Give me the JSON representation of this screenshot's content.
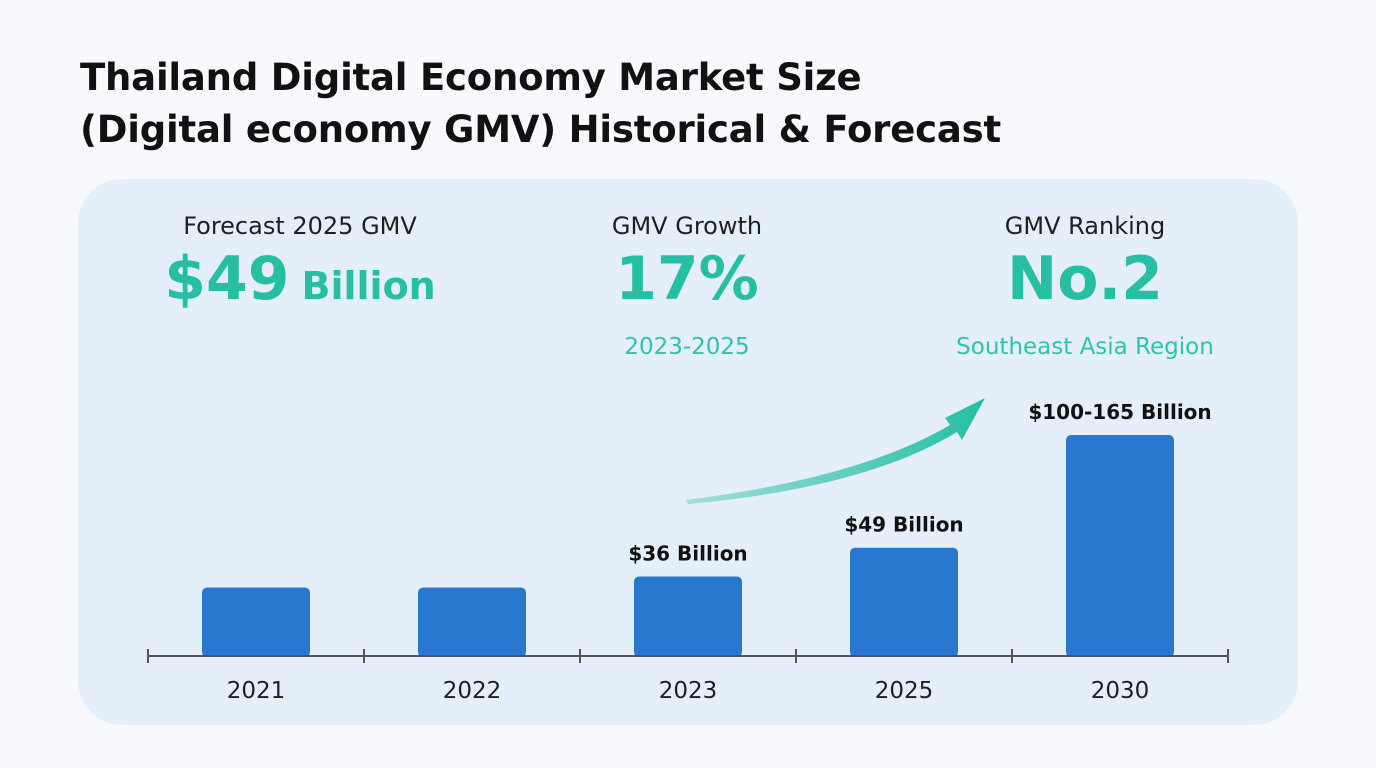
{
  "title_lines": [
    "Thailand Digital Economy Market Size",
    "(Digital economy GMV) Historical & Forecast"
  ],
  "stats": [
    {
      "label": "Forecast 2025 GMV",
      "value": "$49",
      "unit": "Billion",
      "sub": ""
    },
    {
      "label": "GMV Growth",
      "value": "17%",
      "unit": "",
      "sub": "2023-2025"
    },
    {
      "label": "GMV Ranking",
      "value": "No.2",
      "unit": "",
      "sub": "Southeast Asia Region"
    }
  ],
  "colors": {
    "bar": "#2878d0",
    "accent": "#26bfa4",
    "axis": "#555555",
    "panel": "#e4effa"
  },
  "chart_data": {
    "type": "bar",
    "title": "Thailand Digital Economy Market Size (Digital economy GMV) Historical & Forecast",
    "categories": [
      "2021",
      "2022",
      "2023",
      "2025",
      "2030"
    ],
    "values": [
      31,
      31,
      36,
      49,
      100
    ],
    "data_labels": [
      "",
      "",
      "$36 Billion",
      "$49 Billion",
      "$100-165 Billion"
    ],
    "unit": "Billion USD",
    "ylim": [
      0,
      105
    ],
    "grid": false,
    "legend": "none",
    "annotation": "upward growth arrow from 2023 toward 2030"
  }
}
